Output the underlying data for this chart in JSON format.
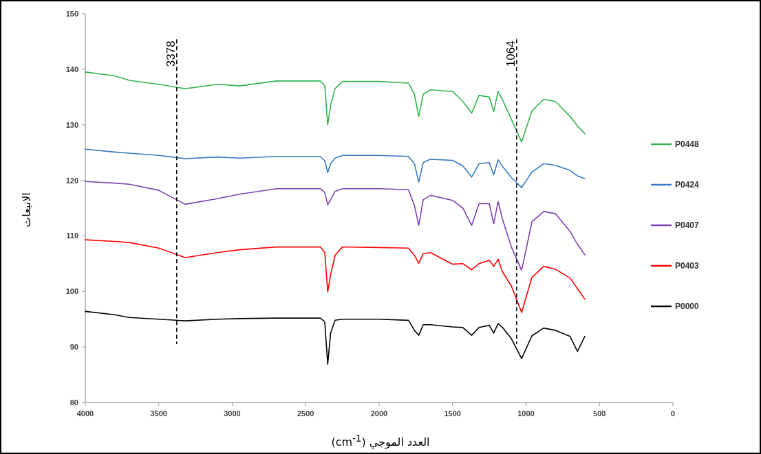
{
  "chart_data": {
    "type": "line",
    "xlabel": "العدد الموجي (cm$^{-1}$)",
    "ylabel": "الانبعاث",
    "x": [
      4000,
      3800,
      3700,
      3500,
      3320,
      3100,
      2950,
      2700,
      2400,
      2370,
      2350,
      2330,
      2300,
      2250,
      2000,
      1800,
      1760,
      1730,
      1700,
      1650,
      1500,
      1430,
      1370,
      1320,
      1250,
      1220,
      1190,
      1160,
      1100,
      1030,
      960,
      880,
      800,
      700,
      650,
      600
    ],
    "series": [
      {
        "name": "P0448",
        "color": "#33b350",
        "values": [
          139.5,
          138.8,
          138.0,
          137.3,
          136.5,
          137.3,
          137.0,
          137.9,
          137.9,
          137.0,
          130.0,
          133.5,
          136.5,
          137.8,
          137.8,
          137.5,
          135.5,
          131.5,
          135.5,
          136.3,
          136.0,
          134.2,
          132.1,
          135.3,
          135.0,
          132.4,
          136.0,
          134.5,
          131.0,
          126.9,
          132.5,
          134.6,
          134.2,
          131.5,
          129.8,
          128.4
        ]
      },
      {
        "name": "P0424",
        "color": "#3579c4",
        "values": [
          125.6,
          125.1,
          124.9,
          124.5,
          123.9,
          124.2,
          124.0,
          124.3,
          124.3,
          123.5,
          121.4,
          123.0,
          124.0,
          124.5,
          124.5,
          124.3,
          123.0,
          119.7,
          123.2,
          123.8,
          123.6,
          122.6,
          120.6,
          123.0,
          123.2,
          121.0,
          123.7,
          122.5,
          120.5,
          118.7,
          121.5,
          123.0,
          122.7,
          121.8,
          120.8,
          120.3
        ]
      },
      {
        "name": "P0407",
        "color": "#7e3fb3",
        "values": [
          119.8,
          119.5,
          119.3,
          118.2,
          115.7,
          116.7,
          117.5,
          118.5,
          118.5,
          117.8,
          115.6,
          116.5,
          118.0,
          118.5,
          118.5,
          118.3,
          115.5,
          111.9,
          116.5,
          117.3,
          116.4,
          115.0,
          111.9,
          115.8,
          115.8,
          112.2,
          116.2,
          113.0,
          108.0,
          103.8,
          112.5,
          114.4,
          114.0,
          110.8,
          108.5,
          106.6
        ]
      },
      {
        "name": "P0403",
        "color": "#ff0000",
        "values": [
          109.3,
          109.0,
          108.8,
          107.8,
          106.1,
          107.0,
          107.5,
          108.0,
          108.0,
          107.0,
          99.9,
          103.0,
          106.5,
          108.0,
          107.9,
          107.8,
          106.5,
          105.1,
          106.8,
          107.0,
          104.9,
          105.0,
          103.9,
          105.0,
          105.6,
          104.5,
          105.8,
          103.5,
          101.0,
          96.2,
          102.5,
          104.5,
          104.0,
          102.4,
          100.5,
          98.6
        ]
      },
      {
        "name": "P0000",
        "color": "#000000",
        "values": [
          96.4,
          95.8,
          95.3,
          95.0,
          94.7,
          95.0,
          95.1,
          95.2,
          95.2,
          94.5,
          86.9,
          92.5,
          94.8,
          95.0,
          95.0,
          94.8,
          93.0,
          92.1,
          94.0,
          94.0,
          93.6,
          93.5,
          92.1,
          93.5,
          93.9,
          92.5,
          94.2,
          93.5,
          91.5,
          87.9,
          92.0,
          93.4,
          93.0,
          91.9,
          89.2,
          91.9
        ]
      }
    ],
    "xlim": [
      4000,
      0
    ],
    "xticks": [
      4000,
      3500,
      3000,
      2500,
      2000,
      1500,
      1000,
      500,
      0
    ],
    "ylim": [
      80,
      150
    ],
    "yticks": [
      80,
      90,
      100,
      110,
      120,
      130,
      140,
      150
    ],
    "ref_lines": [
      {
        "axis": "x",
        "value": 3378,
        "label": "3378",
        "line_style": "dashed",
        "color": "#000000"
      },
      {
        "axis": "x",
        "value": 1064,
        "label": "1064",
        "line_style": "dashed",
        "color": "#000000"
      }
    ],
    "grid": false,
    "legend": "right",
    "marker": "none",
    "line_style": "solid"
  }
}
